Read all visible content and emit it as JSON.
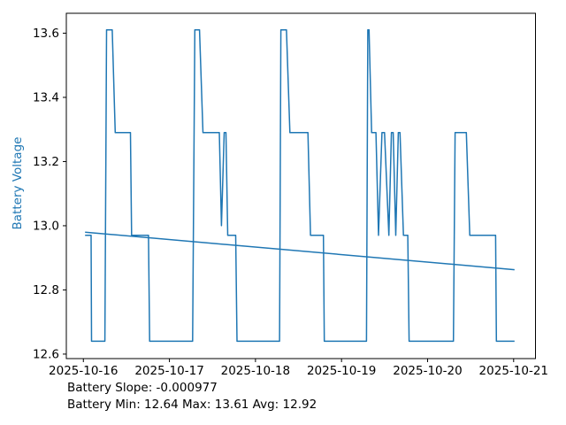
{
  "chart_data": {
    "type": "line",
    "title": "",
    "xlabel": "",
    "ylabel": "Battery Voltage",
    "ylabel_color": "#1f77b4",
    "line_color": "#1f77b4",
    "axis_color": "#000000",
    "background": "#ffffff",
    "grid": false,
    "legend": "none",
    "x_unit": "days relative to 2025-10-16",
    "xlim_days": [
      -0.198,
      5.254
    ],
    "ylim": [
      12.586,
      13.662
    ],
    "x_ticks": [
      {
        "t": 0,
        "label": "2025-10-16"
      },
      {
        "t": 1,
        "label": "2025-10-17"
      },
      {
        "t": 2,
        "label": "2025-10-18"
      },
      {
        "t": 3,
        "label": "2025-10-19"
      },
      {
        "t": 4,
        "label": "2025-10-20"
      },
      {
        "t": 5,
        "label": "2025-10-21"
      }
    ],
    "y_ticks": [
      {
        "v": 12.6,
        "label": "12.6"
      },
      {
        "v": 12.8,
        "label": "12.8"
      },
      {
        "v": 13.0,
        "label": "13.0"
      },
      {
        "v": 13.2,
        "label": "13.2"
      },
      {
        "v": 13.4,
        "label": "13.4"
      },
      {
        "v": 13.6,
        "label": "13.6"
      }
    ],
    "series": [
      {
        "name": "battery-voltage-line",
        "points": [
          [
            0.02,
            12.97
          ],
          [
            0.09,
            12.97
          ],
          [
            0.095,
            12.64
          ],
          [
            0.25,
            12.64
          ],
          [
            0.27,
            13.61
          ],
          [
            0.335,
            13.61
          ],
          [
            0.37,
            13.29
          ],
          [
            0.547,
            13.29
          ],
          [
            0.56,
            12.97
          ],
          [
            0.757,
            12.97
          ],
          [
            0.77,
            12.64
          ],
          [
            1.27,
            12.64
          ],
          [
            1.295,
            13.61
          ],
          [
            1.35,
            13.61
          ],
          [
            1.39,
            13.29
          ],
          [
            1.58,
            13.29
          ],
          [
            1.605,
            13.0
          ],
          [
            1.636,
            13.29
          ],
          [
            1.657,
            13.29
          ],
          [
            1.678,
            12.97
          ],
          [
            1.77,
            12.97
          ],
          [
            1.785,
            12.64
          ],
          [
            2.28,
            12.64
          ],
          [
            2.295,
            13.61
          ],
          [
            2.36,
            13.61
          ],
          [
            2.4,
            13.29
          ],
          [
            2.61,
            13.29
          ],
          [
            2.64,
            12.97
          ],
          [
            2.79,
            12.97
          ],
          [
            2.8,
            12.64
          ],
          [
            3.29,
            12.64
          ],
          [
            3.305,
            13.61
          ],
          [
            3.32,
            13.61
          ],
          [
            3.35,
            13.29
          ],
          [
            3.4,
            13.29
          ],
          [
            3.43,
            12.97
          ],
          [
            3.47,
            13.29
          ],
          [
            3.5,
            13.29
          ],
          [
            3.55,
            12.97
          ],
          [
            3.58,
            13.29
          ],
          [
            3.6,
            13.29
          ],
          [
            3.63,
            12.97
          ],
          [
            3.66,
            13.29
          ],
          [
            3.68,
            13.29
          ],
          [
            3.72,
            12.97
          ],
          [
            3.77,
            12.97
          ],
          [
            3.785,
            12.64
          ],
          [
            4.3,
            12.64
          ],
          [
            4.32,
            13.29
          ],
          [
            4.45,
            13.29
          ],
          [
            4.49,
            12.97
          ],
          [
            4.79,
            12.97
          ],
          [
            4.8,
            12.64
          ],
          [
            5.01,
            12.64
          ]
        ]
      },
      {
        "name": "trend-line",
        "points": [
          [
            0.02,
            12.98
          ],
          [
            5.01,
            12.863
          ]
        ]
      }
    ],
    "stats": {
      "slope_per_hour": -0.000977,
      "min": 12.64,
      "max": 13.61,
      "avg": 12.92
    }
  },
  "footer": {
    "line1": "Battery Slope: -0.000977",
    "line2": "Battery Min: 12.64 Max: 13.61 Avg: 12.92"
  }
}
